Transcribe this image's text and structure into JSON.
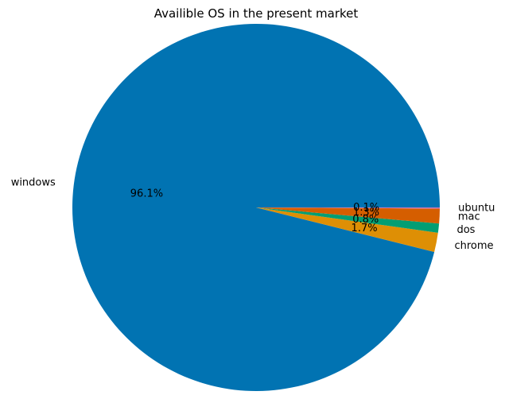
{
  "chart_data": {
    "type": "pie",
    "title": "Availible OS in the present market",
    "categories": [
      "windows",
      "chrome",
      "dos",
      "mac",
      "ubuntu"
    ],
    "values": [
      96.1,
      1.7,
      0.8,
      1.3,
      0.1
    ],
    "percent_labels": [
      "96.1%",
      "1.7%",
      "0.8%",
      "1.3%",
      "0.1%"
    ],
    "colors": [
      "#0173b2",
      "#de8f05",
      "#029e73",
      "#d55e00",
      "#cc78bc"
    ],
    "start_angle_deg": 0,
    "direction": "counterclockwise"
  }
}
